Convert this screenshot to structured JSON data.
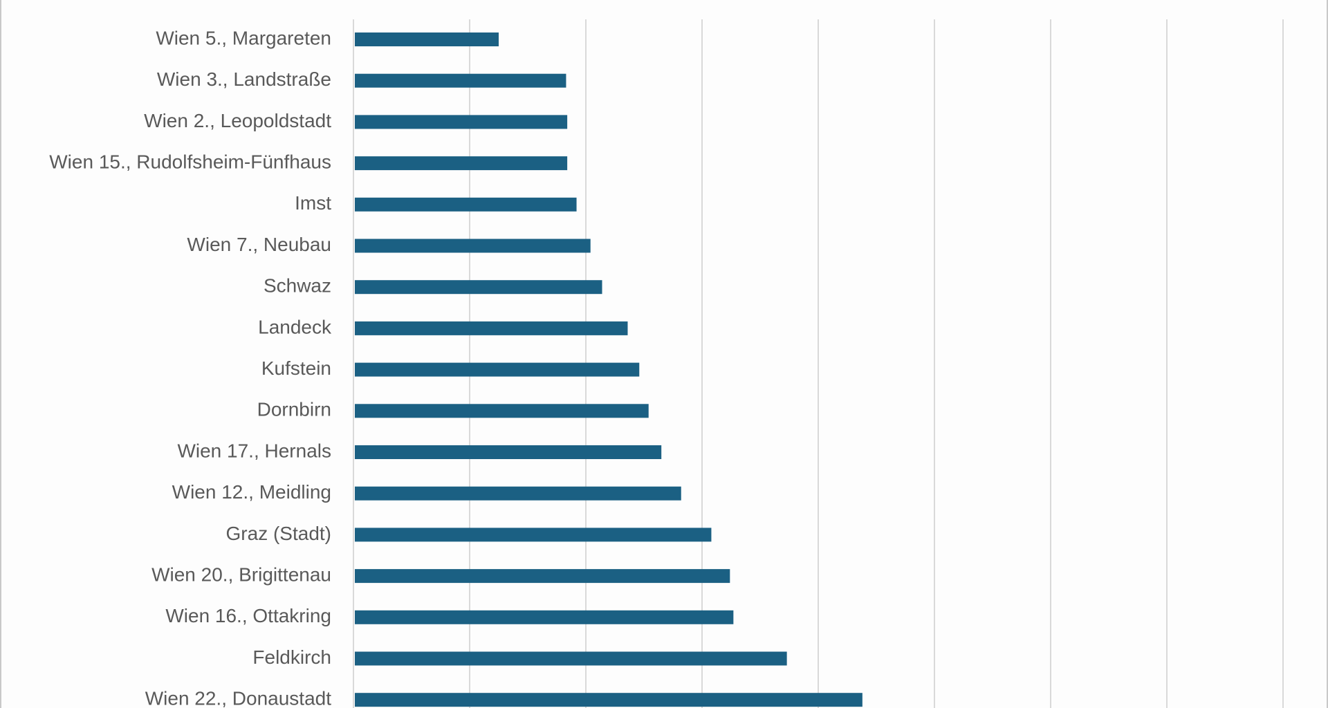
{
  "chart_data": {
    "type": "bar",
    "orientation": "horizontal",
    "categories": [
      "Wien 5., Margareten",
      "Wien 3., Landstraße",
      "Wien 2., Leopoldstadt",
      "Wien 15., Rudolfsheim-Fünfhaus",
      "Imst",
      "Wien 7., Neubau",
      "Schwaz",
      "Landeck",
      "Kufstein",
      "Dornbirn",
      "Wien 17., Hernals",
      "Wien 12., Meidling",
      "Graz (Stadt)",
      "Wien 20., Brigittenau",
      "Wien 16., Ottakring",
      "Feldkirch",
      "Wien 22., Donaustadt"
    ],
    "values": [
      1.25,
      1.83,
      1.84,
      1.84,
      1.92,
      2.04,
      2.14,
      2.36,
      2.46,
      2.54,
      2.65,
      2.82,
      3.08,
      3.24,
      3.27,
      3.73,
      4.38
    ],
    "xlim": [
      0,
      8
    ],
    "grid": true,
    "bar_color": "#1b6083"
  }
}
